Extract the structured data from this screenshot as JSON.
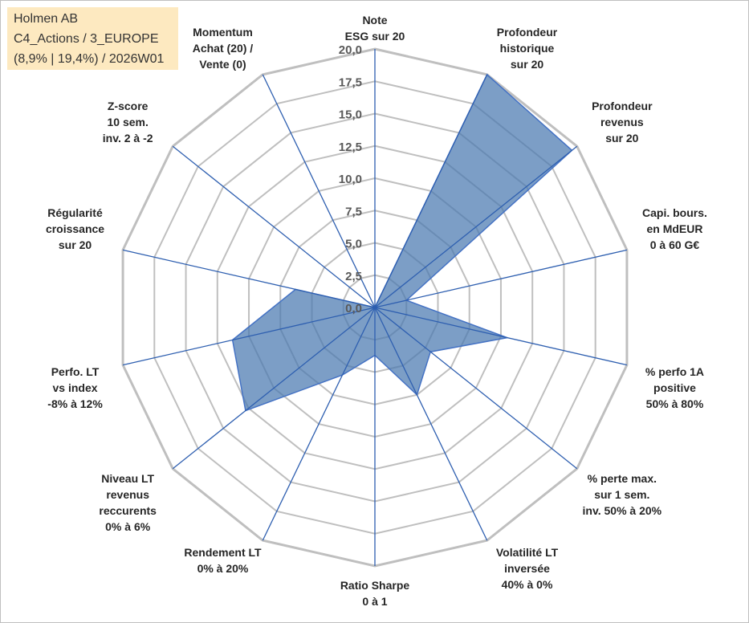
{
  "info": {
    "line1": "Holmen AB",
    "line2": "C4_Actions / 3_EUROPE",
    "line3": "(8,9% | 19,4%) / 2026W01"
  },
  "chart_data": {
    "type": "radar",
    "title": "",
    "rmin": 0,
    "rmax": 20,
    "tick_step": 2.5,
    "tick_labels": [
      "0,0",
      "2,5",
      "5,0",
      "7,5",
      "10,0",
      "12,5",
      "15,0",
      "17,5",
      "20,0"
    ],
    "grid": true,
    "colors": {
      "fill": "#4a78b0",
      "line": "#4472c4",
      "grid": "#bfbfbf",
      "spoke": "#2e5fb0"
    },
    "axes": [
      {
        "lines": [
          "Note",
          "ESG sur 20"
        ]
      },
      {
        "lines": [
          "Profondeur",
          "historique",
          "sur 20"
        ]
      },
      {
        "lines": [
          "Profondeur",
          "revenus",
          "sur 20"
        ]
      },
      {
        "lines": [
          "Capi. bours.",
          "en MdEUR",
          "0 à 60 G€"
        ]
      },
      {
        "lines": [
          "% perfo 1A",
          "positive",
          "50% à 80%"
        ]
      },
      {
        "lines": [
          "% perte max.",
          "sur 1 sem.",
          "inv. 50% à 20%"
        ]
      },
      {
        "lines": [
          "Volatilité LT",
          "inversée",
          "40% à 0%"
        ]
      },
      {
        "lines": [
          "Ratio Sharpe",
          "0 à 1"
        ]
      },
      {
        "lines": [
          "Rendement LT",
          "0% à 20%"
        ]
      },
      {
        "lines": [
          "Niveau LT",
          "revenus",
          "reccurents",
          "0% à 6%"
        ]
      },
      {
        "lines": [
          "Perfo. LT",
          "vs index",
          "-8% à 12%"
        ]
      },
      {
        "lines": [
          "Régularité",
          "croissance",
          "sur 20"
        ]
      },
      {
        "lines": [
          "Z-score",
          "10 sem.",
          "inv. 2 à -2"
        ]
      },
      {
        "lines": [
          "Momentum",
          "Achat (20) /",
          "Vente (0)"
        ]
      }
    ],
    "series": [
      {
        "name": "Holmen AB",
        "values": [
          0.0,
          20.0,
          19.5,
          2.5,
          10.5,
          5.5,
          7.5,
          3.7,
          5.8,
          12.8,
          11.3,
          6.3,
          0.0,
          0.0
        ]
      }
    ]
  }
}
